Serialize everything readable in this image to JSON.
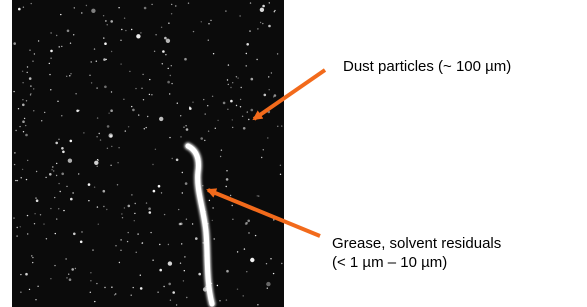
{
  "annotations": [
    {
      "lines": [
        "Dust particles (~ 100 µm)"
      ]
    },
    {
      "lines": [
        "Grease, solvent residuals",
        "(< 1 µm – 10 µm)"
      ]
    }
  ]
}
